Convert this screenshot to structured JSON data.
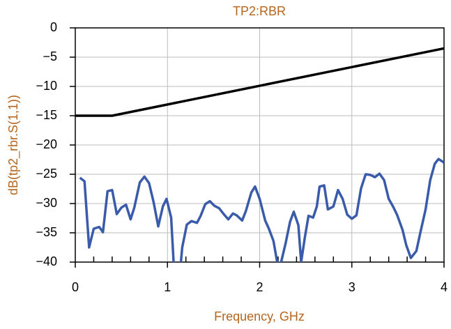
{
  "chart_data": {
    "type": "line",
    "title": "TP2:RBR",
    "xlabel": "Frequency, GHz",
    "ylabel": "dB(tp2_rbr.S(1,1))",
    "xlim": [
      0,
      4
    ],
    "xticks": [
      0,
      1,
      2,
      3,
      4
    ],
    "xminorticks": [
      0.2,
      0.4,
      0.6,
      0.8,
      1.2,
      1.4,
      1.6,
      1.8,
      2.2,
      2.4,
      2.6,
      2.8,
      3.2,
      3.4,
      3.6,
      3.8
    ],
    "ylim": [
      -40,
      0
    ],
    "yticks": [
      {
        "value": -40,
        "label": "−40"
      },
      {
        "value": -35,
        "label": "−35"
      },
      {
        "value": -30,
        "label": "−30"
      },
      {
        "value": -25,
        "label": "−25"
      },
      {
        "value": -20,
        "label": "−20"
      },
      {
        "value": -15,
        "label": "−15"
      },
      {
        "value": -10,
        "label": "−10"
      },
      {
        "value": -5,
        "label": "−5"
      },
      0
    ],
    "grid": true,
    "series": [
      {
        "color": "#000000",
        "x": [
          0,
          0.4,
          4
        ],
        "values": [
          -15,
          -15,
          -3.5
        ]
      },
      {
        "color": "#3a5ba9",
        "x": [
          0.05,
          0.1,
          0.15,
          0.2,
          0.26,
          0.3,
          0.35,
          0.4,
          0.45,
          0.5,
          0.55,
          0.6,
          0.64,
          0.7,
          0.75,
          0.8,
          0.85,
          0.9,
          0.95,
          0.99,
          1.04,
          1.07,
          1.14,
          1.16,
          1.21,
          1.26,
          1.32,
          1.36,
          1.41,
          1.46,
          1.51,
          1.56,
          1.61,
          1.66,
          1.71,
          1.75,
          1.81,
          1.85,
          1.91,
          1.95,
          2.0,
          2.06,
          2.1,
          2.15,
          2.19,
          2.23,
          2.28,
          2.33,
          2.37,
          2.42,
          2.45,
          2.49,
          2.53,
          2.58,
          2.62,
          2.65,
          2.7,
          2.74,
          2.8,
          2.85,
          2.9,
          2.95,
          3.0,
          3.05,
          3.1,
          3.15,
          3.2,
          3.25,
          3.3,
          3.35,
          3.4,
          3.45,
          3.49,
          3.55,
          3.59,
          3.64,
          3.7,
          3.74,
          3.8,
          3.85,
          3.9,
          3.94,
          4.0
        ],
        "values": [
          -25.6,
          -26.2,
          -37.5,
          -34.3,
          -34,
          -34.9,
          -27.9,
          -27.7,
          -31.8,
          -30.7,
          -30.2,
          -32.7,
          -30.7,
          -26.4,
          -25.4,
          -26.5,
          -29.8,
          -33.9,
          -30.5,
          -29.2,
          -32.4,
          -41,
          -41,
          -37.5,
          -33.6,
          -33,
          -33.3,
          -32.1,
          -30.1,
          -29.6,
          -30.4,
          -30.8,
          -31.8,
          -32.7,
          -31.7,
          -32,
          -32.9,
          -31.3,
          -28.1,
          -27.1,
          -29.2,
          -32.9,
          -34.3,
          -36.4,
          -40,
          -40.2,
          -36.9,
          -33.1,
          -31.4,
          -33.7,
          -40,
          -35.8,
          -32.1,
          -32.4,
          -30.5,
          -27.1,
          -26.9,
          -31,
          -30.5,
          -27.7,
          -29.2,
          -31.9,
          -32.6,
          -32,
          -27.4,
          -25,
          -25.1,
          -25.5,
          -24.9,
          -26,
          -29.2,
          -30.6,
          -31.9,
          -34.5,
          -37.1,
          -39.3,
          -38.1,
          -35.2,
          -31,
          -26,
          -23.2,
          -22.4,
          -23
        ]
      }
    ]
  }
}
